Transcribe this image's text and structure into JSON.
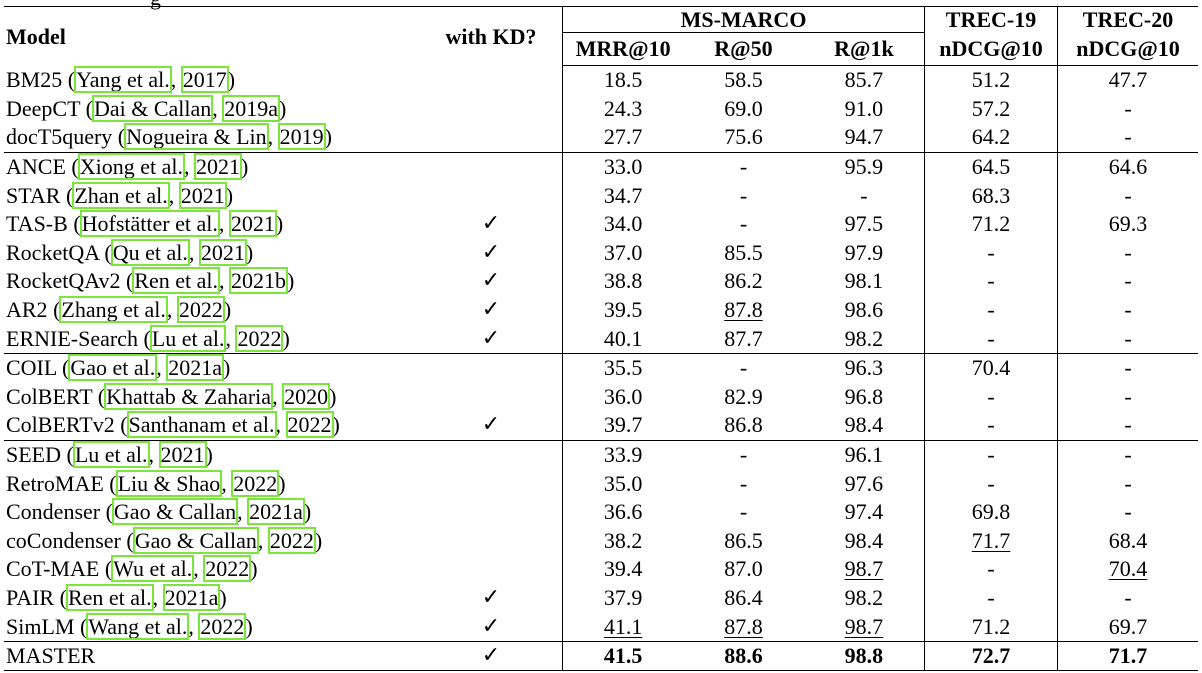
{
  "caption_fragment": "g",
  "header": {
    "model": "Model",
    "kd": "with KD?",
    "msmarco": "MS-MARCO",
    "trec19": "TREC-19",
    "trec20": "TREC-20",
    "mrr": "MRR@10",
    "r50": "R@50",
    "r1k": "R@1k",
    "ndcg19": "nDCG@10",
    "ndcg20": "nDCG@10"
  },
  "rows": [
    {
      "name": "BM25",
      "cite1": "Yang et al.",
      "cite2": "2017",
      "kd": "",
      "mrr": "18.5",
      "r50": "58.5",
      "r1k": "85.7",
      "t19": "51.2",
      "t20": "47.7",
      "group_start": false
    },
    {
      "name": "DeepCT",
      "cite1": "Dai & Callan",
      "cite2": "2019a",
      "kd": "",
      "mrr": "24.3",
      "r50": "69.0",
      "r1k": "91.0",
      "t19": "57.2",
      "t20": "-",
      "group_start": false
    },
    {
      "name": "docT5query",
      "cite1": "Nogueira & Lin",
      "cite2": "2019",
      "kd": "",
      "mrr": "27.7",
      "r50": "75.6",
      "r1k": "94.7",
      "t19": "64.2",
      "t20": "-",
      "group_start": false
    },
    {
      "name": "ANCE",
      "cite1": "Xiong et al.",
      "cite2": "2021",
      "kd": "",
      "mrr": "33.0",
      "r50": "-",
      "r1k": "95.9",
      "t19": "64.5",
      "t20": "64.6",
      "group_start": true
    },
    {
      "name": "STAR",
      "cite1": "Zhan et al.",
      "cite2": "2021",
      "kd": "",
      "mrr": "34.7",
      "r50": "-",
      "r1k": "-",
      "t19": "68.3",
      "t20": "-",
      "group_start": false
    },
    {
      "name": "TAS-B",
      "cite1": "Hofstätter et al.",
      "cite2": "2021",
      "kd": "✓",
      "mrr": "34.0",
      "r50": "-",
      "r1k": "97.5",
      "t19": "71.2",
      "t20": "69.3",
      "group_start": false
    },
    {
      "name": "RocketQA",
      "cite1": "Qu et al.",
      "cite2": "2021",
      "kd": "✓",
      "mrr": "37.0",
      "r50": "85.5",
      "r1k": "97.9",
      "t19": "-",
      "t20": "-",
      "group_start": false
    },
    {
      "name": "RocketQAv2",
      "cite1": "Ren et al.",
      "cite2": "2021b",
      "kd": "✓",
      "mrr": "38.8",
      "r50": "86.2",
      "r1k": "98.1",
      "t19": "-",
      "t20": "-",
      "group_start": false
    },
    {
      "name": "AR2",
      "cite1": "Zhang et al.",
      "cite2": "2022",
      "kd": "✓",
      "mrr": "39.5",
      "r50": "87.8",
      "r50_u": true,
      "r1k": "98.6",
      "t19": "-",
      "t20": "-",
      "group_start": false
    },
    {
      "name": "ERNIE-Search",
      "cite1": "Lu et al.",
      "cite2": "2022",
      "kd": "✓",
      "mrr": "40.1",
      "r50": "87.7",
      "r1k": "98.2",
      "t19": "-",
      "t20": "-",
      "group_start": false
    },
    {
      "name": "COIL",
      "cite1": "Gao et al.",
      "cite2": "2021a",
      "kd": "",
      "mrr": "35.5",
      "r50": "-",
      "r1k": "96.3",
      "t19": "70.4",
      "t20": "-",
      "group_start": true
    },
    {
      "name": "ColBERT",
      "cite1": "Khattab & Zaharia",
      "cite2": "2020",
      "kd": "",
      "mrr": "36.0",
      "r50": "82.9",
      "r1k": "96.8",
      "t19": "-",
      "t20": "-",
      "group_start": false
    },
    {
      "name": "ColBERTv2",
      "cite1": "Santhanam et al.",
      "cite2": "2022",
      "kd": "✓",
      "mrr": "39.7",
      "r50": "86.8",
      "r1k": "98.4",
      "t19": "-",
      "t20": "-",
      "group_start": false
    },
    {
      "name": "SEED",
      "cite1": "Lu et al.",
      "cite2": "2021",
      "kd": "",
      "mrr": "33.9",
      "r50": "-",
      "r1k": "96.1",
      "t19": "-",
      "t20": "-",
      "group_start": true
    },
    {
      "name": "RetroMAE",
      "cite1": "Liu & Shao",
      "cite2": "2022",
      "kd": "",
      "mrr": "35.0",
      "r50": "-",
      "r1k": "97.6",
      "t19": "-",
      "t20": "-",
      "group_start": false
    },
    {
      "name": "Condenser",
      "cite1": "Gao & Callan",
      "cite2": "2021a",
      "kd": "",
      "mrr": "36.6",
      "r50": "-",
      "r1k": "97.4",
      "t19": "69.8",
      "t20": "-",
      "group_start": false
    },
    {
      "name": "coCondenser",
      "cite1": "Gao & Callan",
      "cite2": "2022",
      "kd": "",
      "mrr": "38.2",
      "r50": "86.5",
      "r1k": "98.4",
      "t19": "71.7",
      "t19_u": true,
      "t20": "68.4",
      "group_start": false
    },
    {
      "name": "CoT-MAE",
      "cite1": "Wu et al.",
      "cite2": "2022",
      "kd": "",
      "mrr": "39.4",
      "r50": "87.0",
      "r1k": "98.7",
      "r1k_u": true,
      "t19": "-",
      "t20": "70.4",
      "t20_u": true,
      "group_start": false
    },
    {
      "name": "PAIR",
      "cite1": "Ren et al.",
      "cite2": "2021a",
      "kd": "✓",
      "mrr": "37.9",
      "r50": "86.4",
      "r1k": "98.2",
      "t19": "-",
      "t20": "-",
      "group_start": false
    },
    {
      "name": "SimLM",
      "cite1": "Wang et al.",
      "cite2": "2022",
      "kd": "✓",
      "mrr": "41.1",
      "mrr_u": true,
      "r50": "87.8",
      "r50_u": true,
      "r1k": "98.7",
      "r1k_u": true,
      "t19": "71.2",
      "t20": "69.7",
      "group_start": false
    },
    {
      "name": "MASTER",
      "cite1": "",
      "cite2": "",
      "kd": "✓",
      "mrr": "41.5",
      "r50": "88.6",
      "r1k": "98.8",
      "t19": "72.7",
      "t20": "71.7",
      "group_start": true,
      "bold": true
    }
  ]
}
